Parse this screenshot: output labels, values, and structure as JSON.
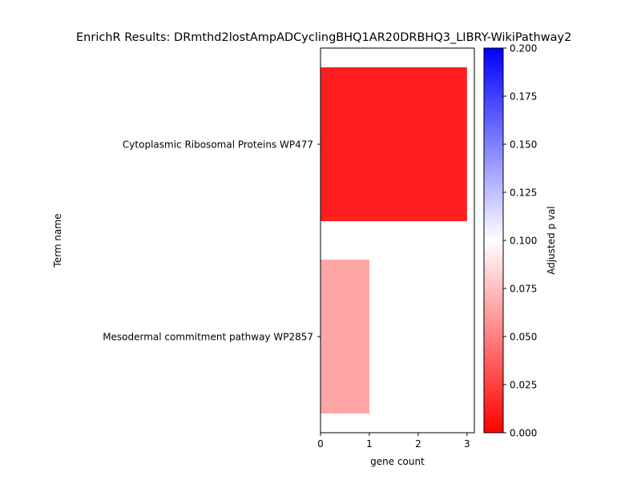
{
  "chart_data": {
    "type": "bar",
    "orientation": "horizontal",
    "title": "EnrichR Results: DRmthd2lostAmpADCyclingBHQ1AR20DRBHQ3_LIBRY-WikiPathway2",
    "xlabel": "gene count",
    "ylabel": "Term name",
    "categories": [
      "Cytoplasmic Ribosomal Proteins WP477",
      "Mesodermal commitment pathway WP2857"
    ],
    "values": [
      3,
      1
    ],
    "adjusted_p": [
      0.012,
      0.065
    ],
    "xlim": [
      0,
      3.15
    ],
    "xticks": [
      "0",
      "1",
      "2",
      "3"
    ],
    "grid": false,
    "colorbar": {
      "label": "Adjusted p val",
      "range": [
        0.0,
        0.2
      ],
      "ticks": [
        "0.000",
        "0.025",
        "0.050",
        "0.075",
        "0.100",
        "0.125",
        "0.150",
        "0.175",
        "0.200"
      ],
      "colors": [
        "#ff0000",
        "#ffffff",
        "#0000ff"
      ]
    }
  }
}
